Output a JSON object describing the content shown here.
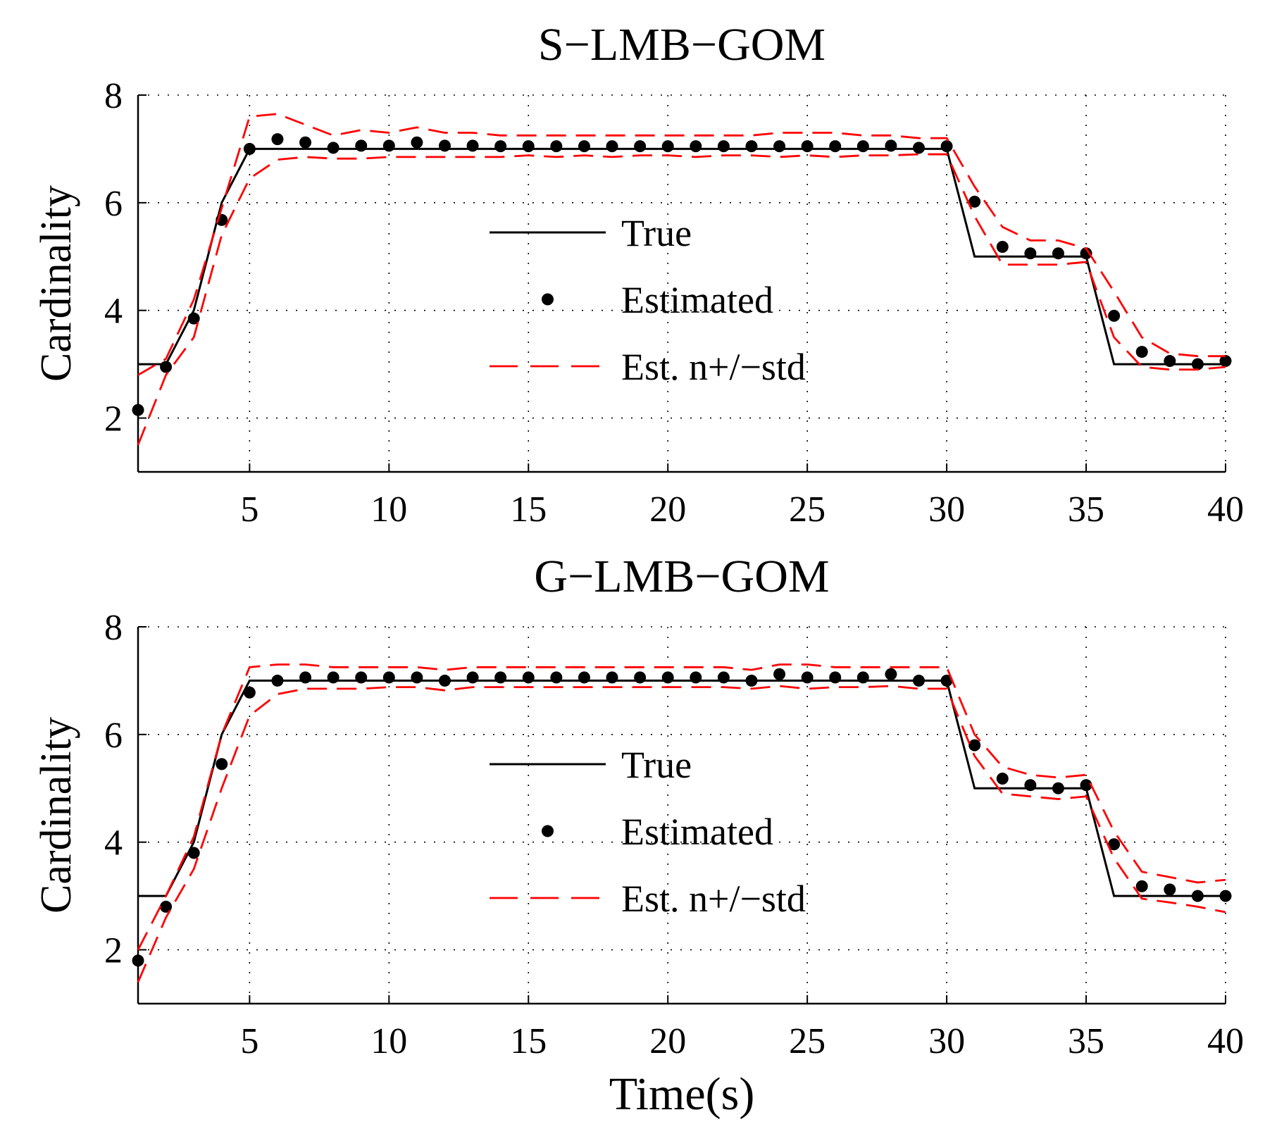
{
  "chart_data": [
    {
      "type": "line",
      "title": "S−LMB−GOM",
      "xlabel": "",
      "ylabel": "Cardinality",
      "xlim": [
        1,
        40
      ],
      "ylim": [
        1,
        8
      ],
      "xticks": [
        5,
        10,
        15,
        20,
        25,
        30,
        35,
        40
      ],
      "yticks": [
        2,
        4,
        6,
        8
      ],
      "grid": true,
      "legend_position": "center-right",
      "x": [
        1,
        2,
        3,
        4,
        5,
        6,
        7,
        8,
        9,
        10,
        11,
        12,
        13,
        14,
        15,
        16,
        17,
        18,
        19,
        20,
        21,
        22,
        23,
        24,
        25,
        26,
        27,
        28,
        29,
        30,
        31,
        32,
        33,
        34,
        35,
        36,
        37,
        38,
        39,
        40
      ],
      "series": [
        {
          "name": "True",
          "style": "solid",
          "color": "#000000",
          "values": [
            3,
            3,
            4,
            6,
            7,
            7,
            7,
            7,
            7,
            7,
            7,
            7,
            7,
            7,
            7,
            7,
            7,
            7,
            7,
            7,
            7,
            7,
            7,
            7,
            7,
            7,
            7,
            7,
            7,
            7,
            5,
            5,
            5,
            5,
            5,
            3,
            3,
            3,
            3,
            3
          ]
        },
        {
          "name": "Estimated",
          "style": "dots",
          "color": "#000000",
          "values": [
            2.15,
            2.95,
            3.85,
            5.68,
            7.0,
            7.18,
            7.12,
            7.02,
            7.06,
            7.06,
            7.12,
            7.06,
            7.06,
            7.05,
            7.05,
            7.05,
            7.05,
            7.05,
            7.05,
            7.05,
            7.05,
            7.05,
            7.05,
            7.05,
            7.05,
            7.05,
            7.05,
            7.06,
            7.02,
            7.05,
            6.02,
            5.18,
            5.06,
            5.06,
            5.06,
            3.9,
            3.23,
            3.06,
            3.0,
            3.06
          ]
        },
        {
          "name": "Est. n+/−std",
          "style": "dashed",
          "color": "#ff0000",
          "upper": [
            2.8,
            3.1,
            4.2,
            5.9,
            7.6,
            7.65,
            7.45,
            7.25,
            7.35,
            7.3,
            7.4,
            7.3,
            7.3,
            7.25,
            7.25,
            7.25,
            7.25,
            7.25,
            7.25,
            7.25,
            7.25,
            7.25,
            7.25,
            7.3,
            7.3,
            7.3,
            7.25,
            7.25,
            7.2,
            7.2,
            6.3,
            5.55,
            5.3,
            5.3,
            5.15,
            4.35,
            3.5,
            3.2,
            3.15,
            3.15
          ],
          "lower": [
            1.5,
            2.8,
            3.5,
            5.4,
            6.45,
            6.8,
            6.85,
            6.82,
            6.82,
            6.85,
            6.85,
            6.85,
            6.85,
            6.85,
            6.88,
            6.85,
            6.88,
            6.85,
            6.88,
            6.88,
            6.85,
            6.88,
            6.88,
            6.85,
            6.88,
            6.85,
            6.88,
            6.88,
            6.9,
            6.9,
            5.75,
            4.85,
            4.85,
            4.85,
            4.9,
            3.5,
            2.95,
            2.9,
            2.9,
            2.95
          ]
        }
      ]
    },
    {
      "type": "line",
      "title": "G−LMB−GOM",
      "xlabel": "Time(s)",
      "ylabel": "Cardinality",
      "xlim": [
        1,
        40
      ],
      "ylim": [
        1,
        8
      ],
      "xticks": [
        5,
        10,
        15,
        20,
        25,
        30,
        35,
        40
      ],
      "yticks": [
        2,
        4,
        6,
        8
      ],
      "grid": true,
      "legend_position": "center-right",
      "x": [
        1,
        2,
        3,
        4,
        5,
        6,
        7,
        8,
        9,
        10,
        11,
        12,
        13,
        14,
        15,
        16,
        17,
        18,
        19,
        20,
        21,
        22,
        23,
        24,
        25,
        26,
        27,
        28,
        29,
        30,
        31,
        32,
        33,
        34,
        35,
        36,
        37,
        38,
        39,
        40
      ],
      "series": [
        {
          "name": "True",
          "style": "solid",
          "color": "#000000",
          "values": [
            3,
            3,
            4,
            6,
            7,
            7,
            7,
            7,
            7,
            7,
            7,
            7,
            7,
            7,
            7,
            7,
            7,
            7,
            7,
            7,
            7,
            7,
            7,
            7,
            7,
            7,
            7,
            7,
            7,
            7,
            5,
            5,
            5,
            5,
            5,
            3,
            3,
            3,
            3,
            3
          ]
        },
        {
          "name": "Estimated",
          "style": "dots",
          "color": "#000000",
          "values": [
            1.8,
            2.8,
            3.8,
            5.45,
            6.78,
            7.0,
            7.06,
            7.06,
            7.06,
            7.06,
            7.06,
            7.0,
            7.06,
            7.06,
            7.06,
            7.06,
            7.06,
            7.06,
            7.06,
            7.06,
            7.06,
            7.06,
            7.0,
            7.12,
            7.06,
            7.06,
            7.06,
            7.12,
            7.0,
            7.0,
            5.8,
            5.18,
            5.06,
            5.0,
            5.06,
            3.96,
            3.18,
            3.12,
            3.0,
            3.0
          ]
        },
        {
          "name": "Est. n+/−std",
          "style": "dashed",
          "color": "#ff0000",
          "upper": [
            2.0,
            3.0,
            4.1,
            6.0,
            7.25,
            7.3,
            7.3,
            7.25,
            7.25,
            7.25,
            7.25,
            7.2,
            7.25,
            7.25,
            7.25,
            7.25,
            7.25,
            7.25,
            7.25,
            7.25,
            7.25,
            7.25,
            7.2,
            7.3,
            7.3,
            7.25,
            7.25,
            7.25,
            7.25,
            7.25,
            6.0,
            5.4,
            5.25,
            5.2,
            5.25,
            4.2,
            3.45,
            3.35,
            3.25,
            3.3
          ],
          "lower": [
            1.4,
            2.6,
            3.5,
            5.0,
            6.35,
            6.75,
            6.85,
            6.85,
            6.85,
            6.88,
            6.88,
            6.82,
            6.88,
            6.88,
            6.88,
            6.88,
            6.88,
            6.88,
            6.88,
            6.88,
            6.88,
            6.88,
            6.85,
            6.9,
            6.85,
            6.88,
            6.88,
            6.9,
            6.85,
            6.85,
            5.6,
            4.9,
            4.85,
            4.8,
            4.85,
            3.7,
            2.95,
            2.88,
            2.8,
            2.7
          ]
        }
      ]
    }
  ]
}
